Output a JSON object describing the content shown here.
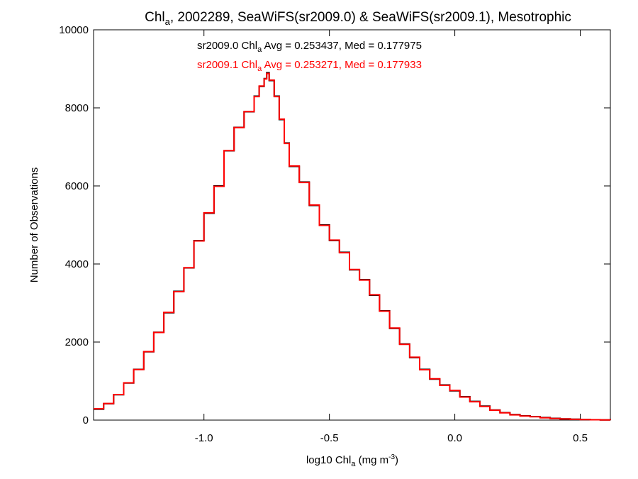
{
  "chart_data": {
    "type": "line",
    "title": {
      "pre": "Chl",
      "sub": "a",
      "post": ", 2002289, SeaWiFS(sr2009.0) & SeaWiFS(sr2009.1), Mesotrophic"
    },
    "xlabel": {
      "pre": "log10 Chl",
      "sub": "a",
      "mid": " (mg m",
      "sup": "-3",
      "post": ")"
    },
    "ylabel": "Number of Observations",
    "xlim": [
      -1.44,
      0.62
    ],
    "ylim": [
      0,
      10000
    ],
    "xticks": [
      -1.0,
      -0.5,
      0.0,
      0.5
    ],
    "xtick_labels": [
      "-1.0",
      "-0.5",
      "0.0",
      "0.5"
    ],
    "yticks": [
      0,
      2000,
      4000,
      6000,
      8000,
      10000
    ],
    "ytick_labels": [
      "0",
      "2000",
      "4000",
      "6000",
      "8000",
      "10000"
    ],
    "grid": false,
    "annotations": [
      {
        "pre": "sr2009.0 Chl",
        "sub": "a",
        "post": " Avg = 0.253437, Med = 0.177975",
        "color": "#000000"
      },
      {
        "pre": "sr2009.1 Chl",
        "sub": "a",
        "post": " Avg = 0.253271, Med = 0.177933",
        "color": "#ff0000"
      }
    ],
    "series": [
      {
        "color": "#000000",
        "step": true,
        "x": [
          -1.44,
          -1.4,
          -1.36,
          -1.32,
          -1.28,
          -1.24,
          -1.2,
          -1.16,
          -1.12,
          -1.08,
          -1.04,
          -1.0,
          -0.96,
          -0.92,
          -0.88,
          -0.84,
          -0.8,
          -0.78,
          -0.76,
          -0.75,
          -0.74,
          -0.72,
          -0.7,
          -0.68,
          -0.66,
          -0.62,
          -0.58,
          -0.54,
          -0.5,
          -0.46,
          -0.42,
          -0.38,
          -0.34,
          -0.3,
          -0.26,
          -0.22,
          -0.18,
          -0.14,
          -0.1,
          -0.06,
          -0.02,
          0.02,
          0.06,
          0.1,
          0.14,
          0.18,
          0.22,
          0.26,
          0.3,
          0.34,
          0.38,
          0.42,
          0.46,
          0.5,
          0.54,
          0.58,
          0.62
        ],
        "y": [
          280,
          420,
          650,
          950,
          1300,
          1750,
          2250,
          2750,
          3300,
          3900,
          4600,
          5300,
          6000,
          6900,
          7500,
          7900,
          8300,
          8550,
          8750,
          8900,
          8700,
          8300,
          7700,
          7100,
          6500,
          6100,
          5500,
          5000,
          4600,
          4300,
          3850,
          3600,
          3200,
          2800,
          2350,
          1950,
          1600,
          1300,
          1050,
          900,
          750,
          600,
          480,
          360,
          260,
          190,
          140,
          110,
          90,
          65,
          45,
          32,
          22,
          15,
          10,
          6,
          3
        ]
      },
      {
        "color": "#ff0000",
        "step": true,
        "x": [
          -1.44,
          -1.4,
          -1.36,
          -1.32,
          -1.28,
          -1.24,
          -1.2,
          -1.16,
          -1.12,
          -1.08,
          -1.04,
          -1.0,
          -0.96,
          -0.92,
          -0.88,
          -0.84,
          -0.8,
          -0.78,
          -0.76,
          -0.75,
          -0.74,
          -0.72,
          -0.7,
          -0.68,
          -0.66,
          -0.62,
          -0.58,
          -0.54,
          -0.5,
          -0.46,
          -0.42,
          -0.38,
          -0.34,
          -0.3,
          -0.26,
          -0.22,
          -0.18,
          -0.14,
          -0.1,
          -0.06,
          -0.02,
          0.02,
          0.06,
          0.1,
          0.14,
          0.18,
          0.22,
          0.26,
          0.3,
          0.34,
          0.38,
          0.42,
          0.46,
          0.5,
          0.54,
          0.58,
          0.62
        ],
        "y": [
          290,
          425,
          655,
          955,
          1295,
          1755,
          2245,
          2760,
          3290,
          3905,
          4590,
          5310,
          5990,
          6905,
          7495,
          7905,
          8290,
          8560,
          8740,
          8880,
          8710,
          8290,
          7710,
          7090,
          6510,
          6090,
          5510,
          4990,
          4610,
          4290,
          3860,
          3590,
          3210,
          2790,
          2360,
          1940,
          1610,
          1290,
          1060,
          890,
          760,
          590,
          470,
          350,
          255,
          185,
          135,
          105,
          85,
          60,
          42,
          30,
          20,
          14,
          9,
          5,
          2
        ]
      }
    ]
  }
}
